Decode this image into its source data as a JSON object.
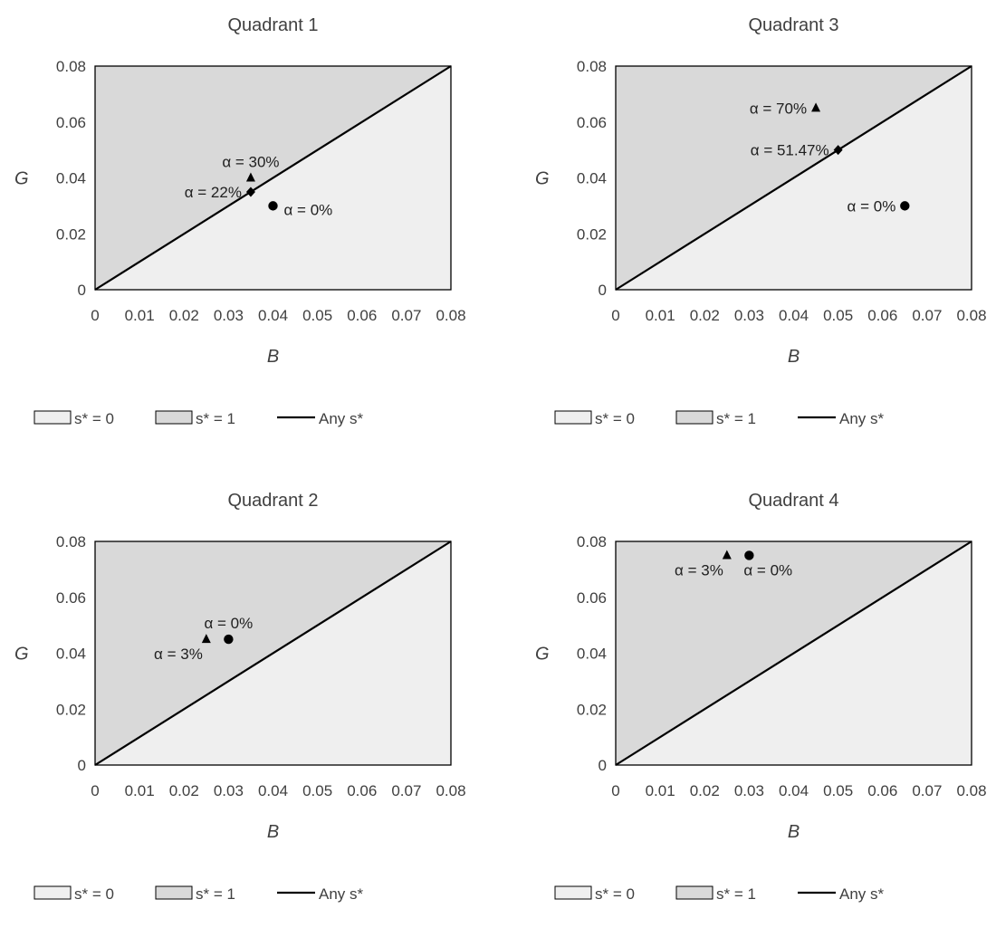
{
  "legend": {
    "s0": "s* = 0",
    "s1": "s* = 1",
    "line": "Any s*"
  },
  "colors": {
    "region_s0": "#efefef",
    "region_s1": "#d9d9d9",
    "line": "#000000",
    "marker": "#000000"
  },
  "chart_data": [
    {
      "type": "scatter",
      "title": "Quadrant 1",
      "xlabel": "B",
      "ylabel": "G",
      "xlim": [
        0,
        0.08
      ],
      "ylim": [
        0,
        0.08
      ],
      "xticks": [
        "0",
        "0.01",
        "0.02",
        "0.03",
        "0.04",
        "0.05",
        "0.06",
        "0.07",
        "0.08"
      ],
      "yticks": [
        "0",
        "0.02",
        "0.04",
        "0.06",
        "0.08"
      ],
      "regions": [
        {
          "label": "s* = 0",
          "area": "below-diagonal"
        },
        {
          "label": "s* = 1",
          "area": "above-diagonal"
        }
      ],
      "diagonal": {
        "label": "Any s*",
        "from": [
          0,
          0
        ],
        "to": [
          0.08,
          0.08
        ]
      },
      "points": [
        {
          "marker": "triangle",
          "x": 0.035,
          "y": 0.04,
          "label": "α = 30%",
          "label_pos": "above"
        },
        {
          "marker": "diamond",
          "x": 0.035,
          "y": 0.035,
          "label": "α = 22%",
          "label_pos": "left"
        },
        {
          "marker": "circle",
          "x": 0.04,
          "y": 0.03,
          "label": "α = 0%",
          "label_pos": "right"
        }
      ]
    },
    {
      "type": "scatter",
      "title": "Quadrant 3",
      "xlabel": "B",
      "ylabel": "G",
      "xlim": [
        0,
        0.08
      ],
      "ylim": [
        0,
        0.08
      ],
      "xticks": [
        "0",
        "0.01",
        "0.02",
        "0.03",
        "0.04",
        "0.05",
        "0.06",
        "0.07",
        "0.08"
      ],
      "yticks": [
        "0",
        "0.02",
        "0.04",
        "0.06",
        "0.08"
      ],
      "regions": [
        {
          "label": "s* = 0",
          "area": "below-diagonal"
        },
        {
          "label": "s* = 1",
          "area": "above-diagonal"
        }
      ],
      "diagonal": {
        "label": "Any s*",
        "from": [
          0,
          0
        ],
        "to": [
          0.08,
          0.08
        ]
      },
      "points": [
        {
          "marker": "triangle",
          "x": 0.045,
          "y": 0.065,
          "label": "α = 70%",
          "label_pos": "left"
        },
        {
          "marker": "diamond",
          "x": 0.05,
          "y": 0.05,
          "label": "α = 51.47%",
          "label_pos": "left"
        },
        {
          "marker": "circle",
          "x": 0.065,
          "y": 0.03,
          "label": "α = 0%",
          "label_pos": "left"
        }
      ]
    },
    {
      "type": "scatter",
      "title": "Quadrant 2",
      "xlabel": "B",
      "ylabel": "G",
      "xlim": [
        0,
        0.08
      ],
      "ylim": [
        0,
        0.08
      ],
      "xticks": [
        "0",
        "0.01",
        "0.02",
        "0.03",
        "0.04",
        "0.05",
        "0.06",
        "0.07",
        "0.08"
      ],
      "yticks": [
        "0",
        "0.02",
        "0.04",
        "0.06",
        "0.08"
      ],
      "regions": [
        {
          "label": "s* = 0",
          "area": "below-diagonal"
        },
        {
          "label": "s* = 1",
          "area": "above-diagonal"
        }
      ],
      "diagonal": {
        "label": "Any s*",
        "from": [
          0,
          0
        ],
        "to": [
          0.08,
          0.08
        ]
      },
      "points": [
        {
          "marker": "triangle",
          "x": 0.025,
          "y": 0.045,
          "label": "α = 3%",
          "label_pos": "below-left"
        },
        {
          "marker": "circle",
          "x": 0.03,
          "y": 0.045,
          "label": "α = 0%",
          "label_pos": "above"
        }
      ]
    },
    {
      "type": "scatter",
      "title": "Quadrant 4",
      "xlabel": "B",
      "ylabel": "G",
      "xlim": [
        0,
        0.08
      ],
      "ylim": [
        0,
        0.08
      ],
      "xticks": [
        "0",
        "0.01",
        "0.02",
        "0.03",
        "0.04",
        "0.05",
        "0.06",
        "0.07",
        "0.08"
      ],
      "yticks": [
        "0",
        "0.02",
        "0.04",
        "0.06",
        "0.08"
      ],
      "regions": [
        {
          "label": "s* = 0",
          "area": "below-diagonal"
        },
        {
          "label": "s* = 1",
          "area": "above-diagonal"
        }
      ],
      "diagonal": {
        "label": "Any s*",
        "from": [
          0,
          0
        ],
        "to": [
          0.08,
          0.08
        ]
      },
      "points": [
        {
          "marker": "triangle",
          "x": 0.025,
          "y": 0.075,
          "label": "α = 3%",
          "label_pos": "below-left"
        },
        {
          "marker": "circle",
          "x": 0.03,
          "y": 0.075,
          "label": "α = 0%",
          "label_pos": "below-right"
        }
      ]
    }
  ]
}
